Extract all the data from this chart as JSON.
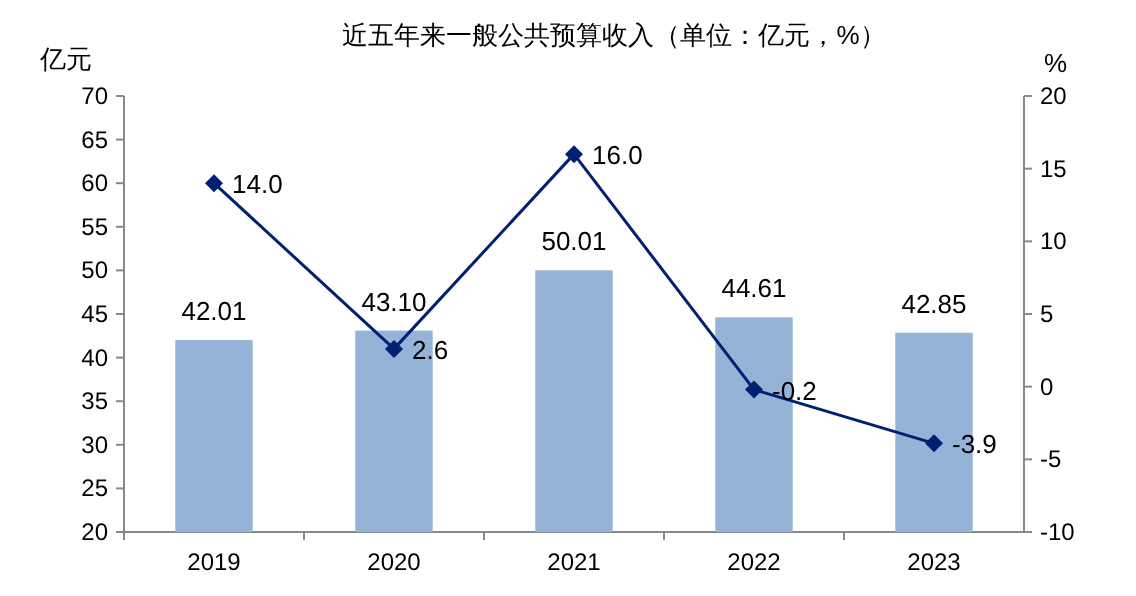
{
  "chart_data": {
    "type": "bar",
    "title": "近五年来一般公共预算收入（单位：亿元，%）",
    "ylabel": "亿元",
    "y2label": "%",
    "categories": [
      "2019",
      "2020",
      "2021",
      "2022",
      "2023"
    ],
    "series": [
      {
        "color": "#95b3d7",
        "values": [
          42.01,
          43.1,
          50.01,
          44.61,
          42.85
        ],
        "value_labels": [
          "42.01",
          "43.10",
          "50.01",
          "44.61",
          "42.85"
        ]
      },
      {
        "type": "line",
        "axis": "y2",
        "color": "#002072",
        "marker": "diamond",
        "line_style": "solid",
        "values": [
          14.0,
          2.6,
          16.0,
          -0.2,
          -3.9
        ],
        "value_labels": [
          "14.0",
          "2.6",
          "16.0",
          "-0.2",
          "-3.9"
        ]
      }
    ],
    "ylim": [
      20,
      70
    ],
    "yticks": [
      20,
      25,
      30,
      35,
      40,
      45,
      50,
      55,
      60,
      65,
      70
    ],
    "y2lim": [
      -10,
      20
    ],
    "y2ticks": [
      -10,
      -5,
      0,
      5,
      10,
      15,
      20
    ],
    "grid": false
  }
}
